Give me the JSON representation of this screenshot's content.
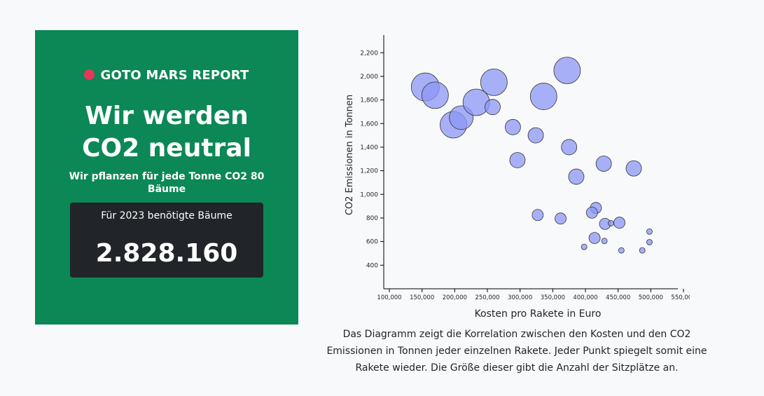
{
  "card": {
    "report_label": "GOTO MARS REPORT",
    "title_line1": "Wir werden",
    "title_line2": "CO2 neutral",
    "subtitle": "Wir pflanzen für jede Tonne CO2 80 Bäume",
    "trees_label": "Für 2023 benötigte Bäume",
    "trees_value": "2.828.160"
  },
  "colors": {
    "card_bg": "#0b8855",
    "dot": "#e8365a",
    "box_bg": "#212529",
    "bubble_fill": "#8c97f5",
    "bubble_stroke": "#333333"
  },
  "caption": "Das Diagramm zeigt die Korrelation zwischen den Kosten und den CO2 Emissionen in Tonnen jeder einzelnen Rakete. Jeder Punkt spiegelt somit eine Rakete wieder. Die Größe dieser gibt die Anzahl der Sitzplätze an.",
  "chart_data": {
    "type": "scatter",
    "xlabel": "Kosten pro Rakete in Euro",
    "ylabel": "CO2 Emissionen in Tonnen",
    "xlim": [
      100000,
      550000
    ],
    "ylim": [
      200,
      2350
    ],
    "xticks": [
      "100,000",
      "150,000",
      "200,000",
      "250,000",
      "300,000",
      "350,000",
      "400,000",
      "450,000",
      "500,000",
      "550,000"
    ],
    "yticks": [
      "400",
      "600",
      "800",
      "1,000",
      "1,200",
      "1,400",
      "1,600",
      "1,800",
      "2,000",
      "2,200"
    ],
    "xtick_values": [
      100000,
      150000,
      200000,
      250000,
      300000,
      350000,
      400000,
      450000,
      500000,
      550000
    ],
    "ytick_values": [
      400,
      600,
      800,
      1000,
      1200,
      1400,
      1600,
      1800,
      2000,
      2200
    ],
    "points": [
      {
        "x": 155000,
        "y": 1910,
        "r": 20
      },
      {
        "x": 170000,
        "y": 1840,
        "r": 19
      },
      {
        "x": 198000,
        "y": 1590,
        "r": 19
      },
      {
        "x": 210000,
        "y": 1650,
        "r": 17
      },
      {
        "x": 233000,
        "y": 1780,
        "r": 19
      },
      {
        "x": 260000,
        "y": 1950,
        "r": 19
      },
      {
        "x": 258000,
        "y": 1740,
        "r": 11
      },
      {
        "x": 336000,
        "y": 1830,
        "r": 19
      },
      {
        "x": 372000,
        "y": 2050,
        "r": 19
      },
      {
        "x": 289000,
        "y": 1570,
        "r": 11
      },
      {
        "x": 324000,
        "y": 1500,
        "r": 11
      },
      {
        "x": 375000,
        "y": 1400,
        "r": 11
      },
      {
        "x": 296000,
        "y": 1290,
        "r": 11
      },
      {
        "x": 428000,
        "y": 1260,
        "r": 11
      },
      {
        "x": 474000,
        "y": 1220,
        "r": 11
      },
      {
        "x": 386000,
        "y": 1150,
        "r": 11
      },
      {
        "x": 416000,
        "y": 885,
        "r": 8
      },
      {
        "x": 410000,
        "y": 845,
        "r": 8
      },
      {
        "x": 327000,
        "y": 825,
        "r": 8
      },
      {
        "x": 362000,
        "y": 795,
        "r": 8
      },
      {
        "x": 430000,
        "y": 750,
        "r": 8
      },
      {
        "x": 452000,
        "y": 760,
        "r": 8
      },
      {
        "x": 439000,
        "y": 755,
        "r": 4
      },
      {
        "x": 414000,
        "y": 630,
        "r": 8
      },
      {
        "x": 429000,
        "y": 605,
        "r": 4
      },
      {
        "x": 398000,
        "y": 555,
        "r": 4
      },
      {
        "x": 455000,
        "y": 525,
        "r": 4
      },
      {
        "x": 487000,
        "y": 525,
        "r": 4
      },
      {
        "x": 498000,
        "y": 685,
        "r": 4
      },
      {
        "x": 498000,
        "y": 595,
        "r": 4
      }
    ]
  }
}
